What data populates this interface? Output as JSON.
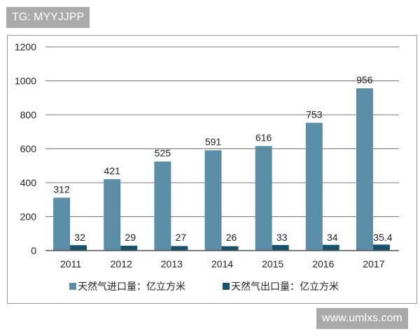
{
  "watermarks": {
    "top": "TG: MYYJJPP",
    "bottom": "www.umlxs.com"
  },
  "chart_data": {
    "type": "bar",
    "categories": [
      "2011",
      "2012",
      "2013",
      "2014",
      "2015",
      "2016",
      "2017"
    ],
    "series": [
      {
        "name": "天然气进口量：亿立方米",
        "values": [
          312,
          421,
          525,
          591,
          616,
          753,
          956
        ],
        "labels": [
          "312",
          "421",
          "525",
          "591",
          "616",
          "753",
          "956"
        ],
        "color": "#5b8ea6"
      },
      {
        "name": "天然气出口量：亿立方米",
        "values": [
          32,
          29,
          27,
          26,
          33,
          34,
          35.4
        ],
        "labels": [
          "32",
          "29",
          "27",
          "26",
          "33",
          "34",
          "35.4"
        ],
        "color": "#17536b"
      }
    ],
    "ylim": [
      0,
      1200
    ],
    "yticks": [
      "0",
      "200",
      "400",
      "600",
      "800",
      "1000",
      "1200"
    ],
    "grid": true,
    "legend": "bottom"
  }
}
